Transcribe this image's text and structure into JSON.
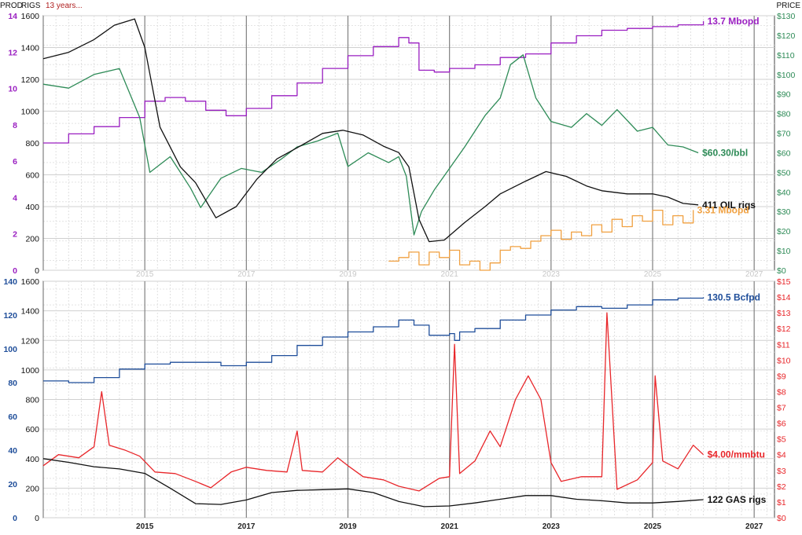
{
  "header": {
    "prod_label": "PROD",
    "rigs_label": "RIGS",
    "range_label": "13 years...",
    "price_label": "PRICE"
  },
  "colors": {
    "oil_prod": "#9a1fc1",
    "oil_price": "#2e8b57",
    "rigs": "#111111",
    "frac": "#f0a040",
    "gas_prod": "#1f4e9a",
    "gas_price": "#e8262a",
    "grid": "#d0d0d0",
    "year_line": "#808080"
  },
  "x_ticks": {
    "top": [
      "2015",
      "2017",
      "2019",
      "2021",
      "2023",
      "2025",
      "2027"
    ],
    "bottom": [
      "2015",
      "2017",
      "2019",
      "2021",
      "2023",
      "2025",
      "2027"
    ]
  },
  "chart_data": [
    {
      "type": "line",
      "panel": "oil",
      "xlim": [
        2013.0,
        2027.4
      ],
      "left_axes": [
        {
          "name": "prod",
          "ticks": [
            "14",
            "12",
            "10",
            "8",
            "6",
            "4",
            "2",
            "0"
          ],
          "range": [
            0,
            14
          ],
          "color": "#9a1fc1"
        },
        {
          "name": "rigs",
          "ticks": [
            "1600",
            "1400",
            "1200",
            "1000",
            "800",
            "600",
            "400",
            "200",
            "0"
          ],
          "range": [
            0,
            1600
          ],
          "color": "#111111"
        }
      ],
      "right_axis": {
        "name": "price",
        "ticks": [
          "$130",
          "$120",
          "$110",
          "$100",
          "$90",
          "$80",
          "$70",
          "$60",
          "$50",
          "$40",
          "$30",
          "$20",
          "$10",
          "$0"
        ],
        "range": [
          0,
          130
        ],
        "color": "#2e8b57"
      },
      "series": [
        {
          "label": "13.7 Mbopd",
          "axis": "prod",
          "color": "#9a1fc1",
          "step": true,
          "x": [
            2013.0,
            2013.5,
            2014.0,
            2014.5,
            2015.0,
            2015.4,
            2015.8,
            2016.2,
            2016.6,
            2017.0,
            2017.5,
            2018.0,
            2018.5,
            2019.0,
            2019.5,
            2020.0,
            2020.2,
            2020.4,
            2020.7,
            2021.0,
            2021.5,
            2022.0,
            2022.5,
            2023.0,
            2023.5,
            2024.0,
            2024.5,
            2025.0,
            2025.5,
            2026.0
          ],
          "y": [
            7.0,
            7.5,
            7.9,
            8.4,
            9.3,
            9.5,
            9.3,
            8.8,
            8.5,
            8.9,
            9.6,
            10.3,
            11.1,
            11.8,
            12.3,
            12.8,
            12.5,
            11.0,
            10.9,
            11.1,
            11.3,
            11.7,
            11.9,
            12.5,
            12.9,
            13.2,
            13.3,
            13.4,
            13.5,
            13.7
          ]
        },
        {
          "label": "$60.30/bbl",
          "axis": "price",
          "color": "#2e8b57",
          "x": [
            2013.0,
            2013.5,
            2014.0,
            2014.5,
            2014.9,
            2015.1,
            2015.5,
            2015.9,
            2016.1,
            2016.5,
            2016.9,
            2017.3,
            2017.7,
            2018.0,
            2018.4,
            2018.8,
            2019.0,
            2019.4,
            2019.8,
            2020.0,
            2020.15,
            2020.3,
            2020.45,
            2020.7,
            2021.0,
            2021.3,
            2021.7,
            2022.0,
            2022.2,
            2022.45,
            2022.7,
            2023.0,
            2023.4,
            2023.7,
            2024.0,
            2024.3,
            2024.7,
            2025.0,
            2025.3,
            2025.6,
            2025.9
          ],
          "y": [
            95,
            93,
            100,
            103,
            78,
            50,
            58,
            42,
            32,
            47,
            52,
            50,
            57,
            63,
            66,
            70,
            53,
            60,
            55,
            58,
            48,
            18,
            30,
            41,
            52,
            63,
            79,
            88,
            105,
            110,
            88,
            76,
            73,
            80,
            74,
            82,
            71,
            73,
            64,
            63,
            60
          ]
        },
        {
          "label": "411 OIL rigs",
          "axis": "rigs",
          "color": "#111111",
          "x": [
            2013.0,
            2013.5,
            2014.0,
            2014.4,
            2014.8,
            2015.0,
            2015.3,
            2015.7,
            2016.0,
            2016.4,
            2016.8,
            2017.2,
            2017.6,
            2018.0,
            2018.5,
            2018.9,
            2019.3,
            2019.7,
            2020.0,
            2020.2,
            2020.4,
            2020.6,
            2020.9,
            2021.3,
            2021.7,
            2022.0,
            2022.5,
            2022.9,
            2023.3,
            2023.7,
            2024.0,
            2024.5,
            2025.0,
            2025.3,
            2025.6,
            2025.9
          ],
          "y": [
            1330,
            1370,
            1450,
            1540,
            1580,
            1400,
            900,
            650,
            550,
            330,
            400,
            570,
            700,
            770,
            860,
            880,
            850,
            780,
            740,
            650,
            320,
            180,
            190,
            300,
            400,
            480,
            560,
            620,
            590,
            530,
            500,
            480,
            480,
            460,
            420,
            411
          ]
        },
        {
          "label": "3.31 Mbopd",
          "axis": "prod",
          "color": "#f0a040",
          "step": true,
          "x": [
            2019.8,
            2020.0,
            2020.2,
            2020.4,
            2020.6,
            2020.8,
            2021.0,
            2021.2,
            2021.4,
            2021.6,
            2021.8,
            2022.0,
            2022.2,
            2022.4,
            2022.6,
            2022.8,
            2023.0,
            2023.2,
            2023.4,
            2023.6,
            2023.8,
            2024.0,
            2024.2,
            2024.4,
            2024.6,
            2024.8,
            2025.0,
            2025.2,
            2025.4,
            2025.6,
            2025.8
          ],
          "y": [
            0.5,
            0.7,
            1.0,
            0.3,
            1.0,
            0.7,
            1.1,
            0.3,
            0.5,
            0.0,
            0.4,
            1.1,
            1.3,
            1.2,
            1.6,
            1.9,
            2.2,
            1.7,
            2.1,
            1.9,
            2.5,
            2.1,
            2.8,
            2.4,
            3.0,
            2.7,
            3.3,
            2.5,
            3.0,
            2.6,
            3.31
          ]
        }
      ]
    },
    {
      "type": "line",
      "panel": "gas",
      "xlim": [
        2013.0,
        2027.4
      ],
      "left_axes": [
        {
          "name": "prod",
          "ticks": [
            "140",
            "120",
            "100",
            "80",
            "60",
            "40",
            "20",
            "0"
          ],
          "range": [
            0,
            140
          ],
          "color": "#1f4e9a"
        },
        {
          "name": "rigs",
          "ticks": [
            "1600",
            "1400",
            "1200",
            "1000",
            "800",
            "600",
            "400",
            "200",
            "0"
          ],
          "range": [
            0,
            1600
          ],
          "color": "#111111"
        }
      ],
      "right_axis": {
        "name": "price",
        "ticks": [
          "$15",
          "$14",
          "$13",
          "$12",
          "$11",
          "$10",
          "$9",
          "$8",
          "$7",
          "$6",
          "$5",
          "$4",
          "$3",
          "$2",
          "$1",
          "$0"
        ],
        "range": [
          0,
          15
        ],
        "color": "#e8262a"
      },
      "series": [
        {
          "label": "130.5 Bcfpd",
          "axis": "prod",
          "color": "#1f4e9a",
          "step": true,
          "x": [
            2013.0,
            2013.5,
            2014.0,
            2014.5,
            2015.0,
            2015.5,
            2016.0,
            2016.5,
            2017.0,
            2017.5,
            2018.0,
            2018.5,
            2019.0,
            2019.5,
            2020.0,
            2020.3,
            2020.6,
            2021.0,
            2021.1,
            2021.2,
            2021.5,
            2022.0,
            2022.5,
            2023.0,
            2023.5,
            2024.0,
            2024.5,
            2025.0,
            2025.5,
            2026.0
          ],
          "y": [
            81,
            80,
            83,
            88,
            91,
            92,
            92,
            90,
            92,
            96,
            102,
            107,
            110,
            113,
            117,
            114,
            108,
            109,
            105,
            110,
            112,
            117,
            120,
            123,
            125,
            124,
            126,
            129,
            130,
            130.5
          ]
        },
        {
          "label": "$4.00/mmbtu",
          "axis": "price",
          "color": "#e8262a",
          "x": [
            2013.0,
            2013.3,
            2013.7,
            2014.0,
            2014.15,
            2014.3,
            2014.6,
            2014.9,
            2015.2,
            2015.6,
            2016.0,
            2016.3,
            2016.7,
            2017.0,
            2017.4,
            2017.8,
            2018.0,
            2018.1,
            2018.5,
            2018.8,
            2019.0,
            2019.3,
            2019.7,
            2020.0,
            2020.4,
            2020.8,
            2021.0,
            2021.1,
            2021.2,
            2021.5,
            2021.8,
            2022.0,
            2022.3,
            2022.55,
            2022.8,
            2023.0,
            2023.2,
            2023.6,
            2024.0,
            2024.1,
            2024.3,
            2024.7,
            2025.0,
            2025.05,
            2025.2,
            2025.5,
            2025.8,
            2026.0
          ],
          "y": [
            3.3,
            4.0,
            3.8,
            4.5,
            8.0,
            4.6,
            4.3,
            3.9,
            2.9,
            2.8,
            2.3,
            1.9,
            2.9,
            3.2,
            3.0,
            2.9,
            5.5,
            3.0,
            2.9,
            3.8,
            3.3,
            2.6,
            2.4,
            2.0,
            1.7,
            2.5,
            2.6,
            11.0,
            2.8,
            3.6,
            5.5,
            4.5,
            7.5,
            9.0,
            7.5,
            3.5,
            2.3,
            2.6,
            2.6,
            13.0,
            1.8,
            2.4,
            3.5,
            9.0,
            3.6,
            3.1,
            4.6,
            4.0
          ]
        },
        {
          "label": "122 GAS rigs",
          "axis": "rigs",
          "color": "#111111",
          "x": [
            2013.0,
            2013.5,
            2014.0,
            2014.5,
            2015.0,
            2015.5,
            2016.0,
            2016.5,
            2017.0,
            2017.5,
            2018.0,
            2018.5,
            2019.0,
            2019.5,
            2020.0,
            2020.5,
            2021.0,
            2021.5,
            2022.0,
            2022.5,
            2023.0,
            2023.5,
            2024.0,
            2024.5,
            2025.0,
            2025.5,
            2026.0
          ],
          "y": [
            400,
            375,
            345,
            330,
            300,
            200,
            95,
            90,
            120,
            170,
            185,
            190,
            195,
            170,
            110,
            75,
            80,
            100,
            125,
            150,
            150,
            125,
            115,
            100,
            100,
            110,
            122
          ]
        }
      ]
    }
  ]
}
